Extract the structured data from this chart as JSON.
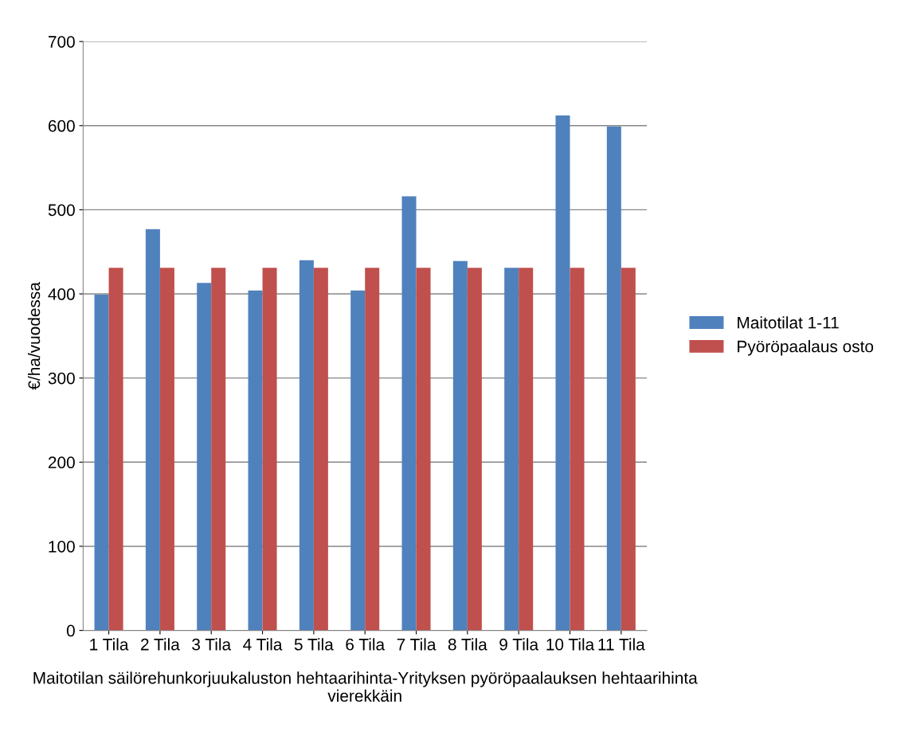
{
  "chart_data": {
    "type": "bar",
    "categories": [
      "1 Tila",
      "2 Tila",
      "3 Tila",
      "4 Tila",
      "5 Tila",
      "6 Tila",
      "7 Tila",
      "8 Tila",
      "9 Tila",
      "10 Tila",
      "11 Tila"
    ],
    "series": [
      {
        "name": "Maitotilat 1-11",
        "color": "#4f81bd",
        "values": [
          399,
          477,
          413,
          404,
          440,
          404,
          516,
          439,
          431,
          612,
          599
        ]
      },
      {
        "name": "Pyöröpaalaus osto",
        "color": "#c0504d",
        "values": [
          431,
          431,
          431,
          431,
          431,
          431,
          431,
          431,
          431,
          431,
          431
        ]
      }
    ],
    "xlabel": "Maitotilan säilörehunkorjuukaluston hehtaarihinta-Yrityksen pyöröpaalauksen hehtaarihinta vierekkäin",
    "ylabel": "€/ha/vuodessa",
    "ylim": [
      0,
      700
    ],
    "yticks": [
      0,
      100,
      200,
      300,
      400,
      500,
      600,
      700
    ],
    "grid": "y",
    "legend": "right"
  }
}
